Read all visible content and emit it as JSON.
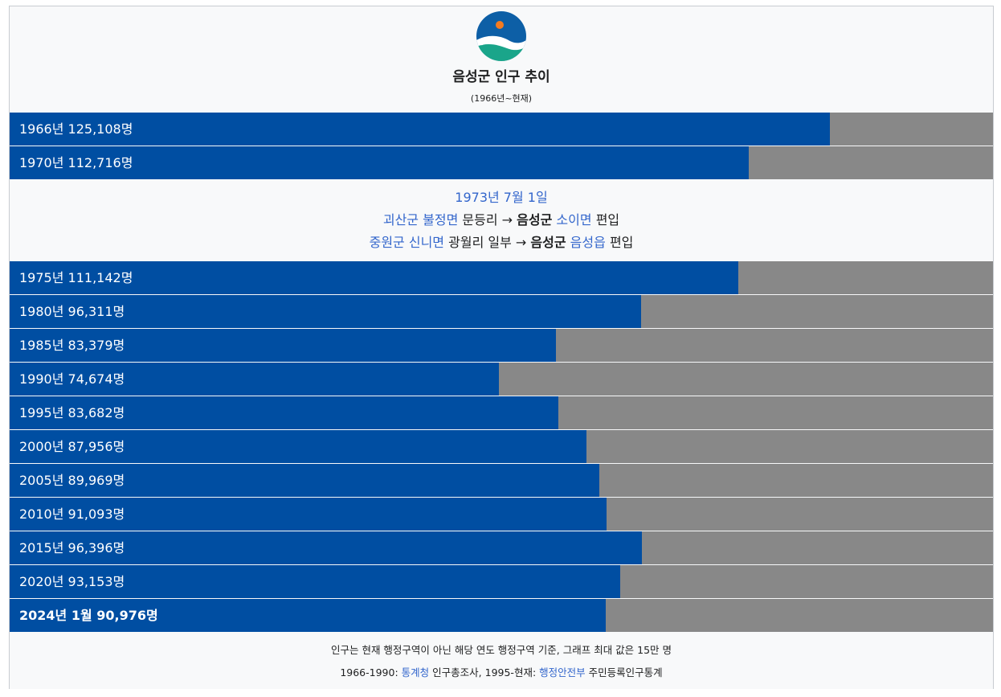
{
  "chart_data": {
    "type": "bar",
    "title": "음성군 인구 추이",
    "subtitle": "(1966년~현재)",
    "xlim": [
      0,
      150000
    ],
    "unit": "명",
    "rows": [
      {
        "label": "1966년 125,108명",
        "value": 125108,
        "bold": false
      },
      {
        "label": "1970년 112,716명",
        "value": 112716,
        "bold": false
      },
      {
        "label": "1975년 111,142명",
        "value": 111142,
        "bold": false
      },
      {
        "label": "1980년 96,311명",
        "value": 96311,
        "bold": false
      },
      {
        "label": "1985년 83,379명",
        "value": 83379,
        "bold": false
      },
      {
        "label": "1990년 74,674명",
        "value": 74674,
        "bold": false
      },
      {
        "label": "1995년 83,682명",
        "value": 83682,
        "bold": false
      },
      {
        "label": "2000년 87,956명",
        "value": 87956,
        "bold": false
      },
      {
        "label": "2005년 89,969명",
        "value": 89969,
        "bold": false
      },
      {
        "label": "2010년 91,093명",
        "value": 91093,
        "bold": false
      },
      {
        "label": "2015년 96,396명",
        "value": 96396,
        "bold": false
      },
      {
        "label": "2020년 93,153명",
        "value": 93153,
        "bold": false
      },
      {
        "label": "2024년 1월 90,976명",
        "value": 90976,
        "bold": true
      }
    ],
    "event": {
      "date": "1973년 7월 1일",
      "line1": {
        "from_county": "괴산군",
        "from_town": "불정면",
        "village": "문등리",
        "arrow": "→",
        "to_county": "음성군",
        "to_town": "소이면",
        "action": "편입"
      },
      "line2": {
        "from_county": "중원군",
        "from_town": "신니면",
        "village": "광월리 일부",
        "arrow": "→",
        "to_county": "음성군",
        "to_town": "음성읍",
        "action": "편입"
      }
    },
    "colors": {
      "bar": "#004ea2",
      "track": "#888888",
      "link": "#3366cc",
      "background": "#f8f9fa"
    }
  },
  "footer": {
    "note": "인구는 현재 행정구역이 아닌 해당 연도 행정구역 기준, 그래프 최대 값은 15만 명",
    "source_prefix": "1966-1990:",
    "source1_link": "통계청",
    "source1_text": "인구총조사,",
    "source_mid": "1995-현재:",
    "source2_link": "행정안전부",
    "source2_text": "주민등록인구통계"
  },
  "logo": {
    "icon": "eumseong-county-emblem"
  }
}
